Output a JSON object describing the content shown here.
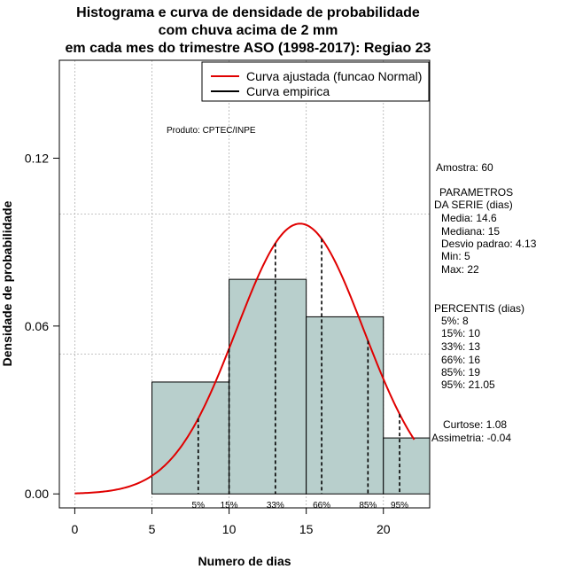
{
  "chart_data": {
    "type": "histogram",
    "title": [
      "Histograma e curva de densidade de probabilidade",
      "com chuva acima de 2 mm",
      "em cada mes do trimestre ASO (1998-2017): Regiao 23"
    ],
    "xlabel": "Numero de dias",
    "ylabel": "Densidade de probabilidade",
    "xlim": [
      -1,
      23
    ],
    "ylim": [
      -0.005,
      0.155
    ],
    "x_ticks": [
      0,
      5,
      10,
      15,
      20
    ],
    "y_ticks": [
      0.0,
      0.06,
      0.12
    ],
    "y_tick_labels": [
      "0.00",
      "0.06",
      "0.12"
    ],
    "bins": [
      {
        "start": 5,
        "end": 10,
        "density": 0.04
      },
      {
        "start": 10,
        "end": 15,
        "density": 0.0767
      },
      {
        "start": 15,
        "end": 20,
        "density": 0.0633
      },
      {
        "start": 20,
        "end": 23,
        "density": 0.02
      }
    ],
    "fitted_curve": {
      "distribution": "normal",
      "mean": 14.6,
      "sd": 4.13,
      "x_range": [
        0,
        22
      ]
    },
    "percentile_lines": [
      {
        "label": "5%",
        "x": 8
      },
      {
        "label": "15%",
        "x": 10
      },
      {
        "label": "33%",
        "x": 13
      },
      {
        "label": "66%",
        "x": 16
      },
      {
        "label": "85%",
        "x": 19
      },
      {
        "label": "95%",
        "x": 21.05
      }
    ],
    "legend": {
      "position": "top-right",
      "entries": [
        {
          "label": "Curva ajustada (funcao Normal)",
          "color": "#e00000"
        },
        {
          "label": "Curva empirica",
          "color": "#000000"
        }
      ]
    },
    "annotation": "Produto: CPTEC/INPE",
    "colors": {
      "bar_fill": "#b8cfcc",
      "curve": "#e00000",
      "grid": "#b0b0b0"
    }
  },
  "sidebar": {
    "amostra": "Amostra: 60",
    "parametros_title_1": "PARAMETROS",
    "parametros_title_2": "DA SERIE (dias)",
    "media": "Media: 14.6",
    "mediana": "Mediana: 15",
    "desvio": "Desvio padrao: 4.13",
    "min": "Min: 5",
    "max": "Max: 22",
    "percentis_title": "PERCENTIS (dias)",
    "p5": "5%: 8",
    "p15": "15%: 10",
    "p33": "33%: 13",
    "p66": "66%: 16",
    "p85": "85%: 19",
    "p95": "95%: 21.05",
    "curtose": "Curtose: 1.08",
    "assimetria": "Assimetria: -0.04"
  }
}
